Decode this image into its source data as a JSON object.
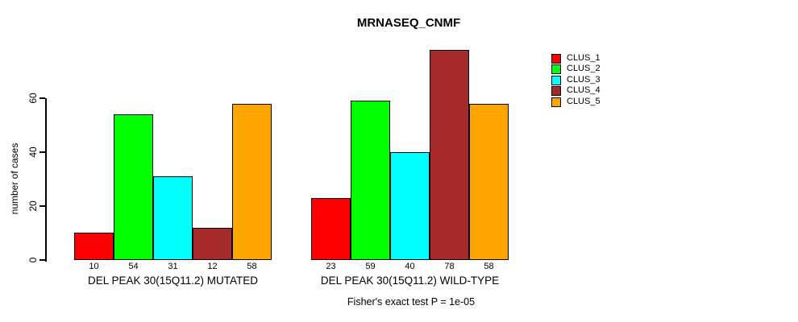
{
  "chart_data": {
    "type": "bar",
    "title": "MRNASEQ_CNMF",
    "ylabel": "number of cases",
    "xlabel": "",
    "categories": [
      "DEL PEAK 30(15Q11.2) MUTATED",
      "DEL PEAK 30(15Q11.2) WILD-TYPE"
    ],
    "series": [
      {
        "name": "CLUS_1",
        "color": "#FF0000",
        "values": [
          10,
          23
        ]
      },
      {
        "name": "CLUS_2",
        "color": "#00FF00",
        "values": [
          54,
          59
        ]
      },
      {
        "name": "CLUS_3",
        "color": "#00FFFF",
        "values": [
          31,
          40
        ]
      },
      {
        "name": "CLUS_4",
        "color": "#A52A2A",
        "values": [
          12,
          78
        ]
      },
      {
        "name": "CLUS_5",
        "color": "#FFA500",
        "values": [
          58,
          58
        ]
      }
    ],
    "bar_value_labels": [
      [
        10,
        54,
        31,
        12,
        58
      ],
      [
        23,
        59,
        40,
        78,
        58
      ]
    ],
    "yticks": [
      0,
      20,
      40,
      60
    ],
    "ylim": [
      0,
      80
    ],
    "grid": false,
    "legend_position": "right",
    "annotation": "Fisher's exact test P = 1e-05"
  }
}
